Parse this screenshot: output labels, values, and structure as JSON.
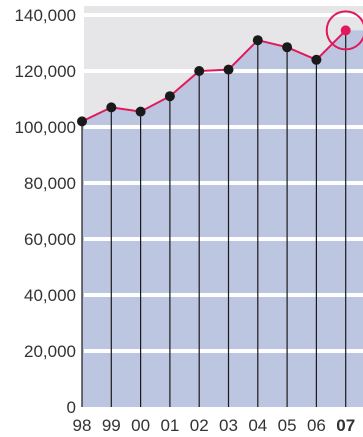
{
  "chart_data": {
    "type": "area",
    "categories": [
      "98",
      "99",
      "00",
      "01",
      "02",
      "03",
      "04",
      "05",
      "06",
      "07"
    ],
    "values": [
      102000,
      107000,
      105500,
      111000,
      120000,
      120500,
      131000,
      128500,
      124000,
      134500
    ],
    "ylim": [
      0,
      140000
    ],
    "yticks": [
      0,
      20000,
      40000,
      60000,
      80000,
      100000,
      120000,
      140000
    ],
    "ytick_labels": [
      "0",
      "20,000",
      "40,000",
      "60,000",
      "80,000",
      "100,000",
      "120,000",
      "140,000"
    ],
    "highlight_index": 9,
    "grid": true,
    "colors": {
      "area_fill": "#bcc6e0",
      "plot_bg": "#e6e6e8",
      "gridline": "#ffffff",
      "line": "#e0195a",
      "point": "#1a1a1a",
      "highlight": "#e0195a",
      "current_label": "#1f5fa8",
      "drop_line": "#1a1a1a"
    }
  }
}
